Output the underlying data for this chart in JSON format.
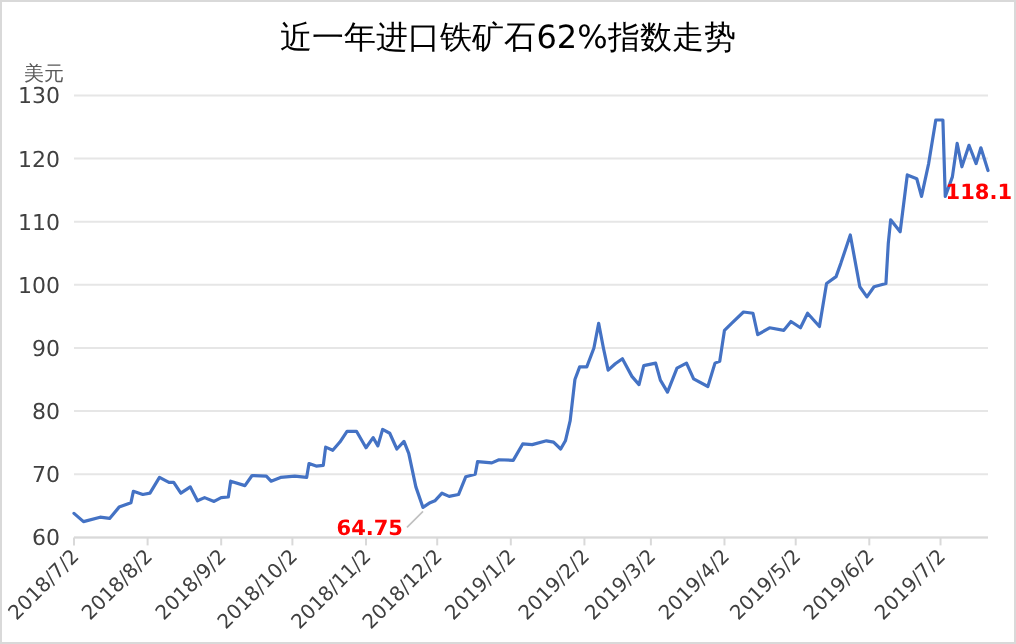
{
  "chart_data": {
    "type": "line",
    "title": "近一年进口铁矿石62%指数走势",
    "ylabel": "美元",
    "color": "#4472c4",
    "grid": "y",
    "xlim": [
      "2018-07-02",
      "2019-07-22"
    ],
    "ylim": [
      60,
      130
    ],
    "yticks": [
      60,
      70,
      80,
      90,
      100,
      110,
      120,
      130
    ],
    "xticks": [
      {
        "value": "2018-07-02",
        "label": "2018/7/2"
      },
      {
        "value": "2018-08-02",
        "label": "2018/8/2"
      },
      {
        "value": "2018-09-02",
        "label": "2018/9/2"
      },
      {
        "value": "2018-10-02",
        "label": "2018/10/2"
      },
      {
        "value": "2018-11-02",
        "label": "2018/11/2"
      },
      {
        "value": "2018-12-02",
        "label": "2018/12/2"
      },
      {
        "value": "2019-01-02",
        "label": "2019/1/2"
      },
      {
        "value": "2019-02-02",
        "label": "2019/2/2"
      },
      {
        "value": "2019-03-02",
        "label": "2019/3/2"
      },
      {
        "value": "2019-04-02",
        "label": "2019/4/2"
      },
      {
        "value": "2019-05-02",
        "label": "2019/5/2"
      },
      {
        "value": "2019-06-02",
        "label": "2019/6/2"
      },
      {
        "value": "2019-07-02",
        "label": "2019/7/2"
      }
    ],
    "x": [
      "2018-07-02",
      "2018-07-06",
      "2018-07-13",
      "2018-07-17",
      "2018-07-21",
      "2018-07-26",
      "2018-07-27",
      "2018-07-31",
      "2018-08-03",
      "2018-08-07",
      "2018-08-11",
      "2018-08-13",
      "2018-08-16",
      "2018-08-20",
      "2018-08-23",
      "2018-08-26",
      "2018-08-30",
      "2018-09-02",
      "2018-09-05",
      "2018-09-06",
      "2018-09-12",
      "2018-09-15",
      "2018-09-21",
      "2018-09-23",
      "2018-09-27",
      "2018-10-03",
      "2018-10-08",
      "2018-10-09",
      "2018-10-12",
      "2018-10-15",
      "2018-10-16",
      "2018-10-19",
      "2018-10-22",
      "2018-10-25",
      "2018-10-29",
      "2018-11-02",
      "2018-11-05",
      "2018-11-07",
      "2018-11-09",
      "2018-11-12",
      "2018-11-15",
      "2018-11-18",
      "2018-11-20",
      "2018-11-23",
      "2018-11-26",
      "2018-11-29",
      "2018-12-01",
      "2018-12-04",
      "2018-12-07",
      "2018-12-11",
      "2018-12-14",
      "2018-12-18",
      "2018-12-19",
      "2018-12-25",
      "2018-12-28",
      "2019-01-03",
      "2019-01-07",
      "2019-01-11",
      "2019-01-17",
      "2019-01-20",
      "2019-01-23",
      "2019-01-25",
      "2019-01-27",
      "2019-01-29",
      "2019-01-31",
      "2019-02-03",
      "2019-02-06",
      "2019-02-08",
      "2019-02-10",
      "2019-02-12",
      "2019-02-15",
      "2019-02-18",
      "2019-02-22",
      "2019-02-25",
      "2019-02-27",
      "2019-03-04",
      "2019-03-06",
      "2019-03-09",
      "2019-03-13",
      "2019-03-17",
      "2019-03-20",
      "2019-03-26",
      "2019-03-29",
      "2019-03-31",
      "2019-04-02",
      "2019-04-05",
      "2019-04-10",
      "2019-04-14",
      "2019-04-16",
      "2019-04-21",
      "2019-04-27",
      "2019-04-30",
      "2019-05-04",
      "2019-05-07",
      "2019-05-12",
      "2019-05-15",
      "2019-05-19",
      "2019-05-21",
      "2019-05-25",
      "2019-05-29",
      "2019-06-01",
      "2019-06-04",
      "2019-06-09",
      "2019-06-10",
      "2019-06-11",
      "2019-06-15",
      "2019-06-18",
      "2019-06-22",
      "2019-06-24",
      "2019-06-27",
      "2019-06-30",
      "2019-07-03",
      "2019-07-04",
      "2019-07-07",
      "2019-07-09",
      "2019-07-11",
      "2019-07-14",
      "2019-07-17",
      "2019-07-19",
      "2019-07-22"
    ],
    "values": [
      63.8,
      62.5,
      63.2,
      63.0,
      64.8,
      65.5,
      67.3,
      66.8,
      67.0,
      69.5,
      68.7,
      68.7,
      67.0,
      68.0,
      65.8,
      66.3,
      65.7,
      66.3,
      66.4,
      68.9,
      68.2,
      69.8,
      69.7,
      68.9,
      69.5,
      69.7,
      69.5,
      71.7,
      71.3,
      71.4,
      74.3,
      73.8,
      75.1,
      76.8,
      76.8,
      74.2,
      75.8,
      74.5,
      77.1,
      76.5,
      74.0,
      75.2,
      73.3,
      68.0,
      64.75,
      65.5,
      65.8,
      67.0,
      66.5,
      66.8,
      69.6,
      70.0,
      72.0,
      71.8,
      72.3,
      72.2,
      74.8,
      74.7,
      75.3,
      75.1,
      74.0,
      75.3,
      78.5,
      85.0,
      87.0,
      87.0,
      90.0,
      93.9,
      90.0,
      86.5,
      87.5,
      88.3,
      85.5,
      84.2,
      87.2,
      87.6,
      84.9,
      83.0,
      86.8,
      87.6,
      85.1,
      83.9,
      87.6,
      87.9,
      92.8,
      93.9,
      95.7,
      95.5,
      92.1,
      93.2,
      92.8,
      94.2,
      93.2,
      95.5,
      93.4,
      100.2,
      101.3,
      103.4,
      107.9,
      99.7,
      98.1,
      99.7,
      100.2,
      106.6,
      110.3,
      108.4,
      117.4,
      116.8,
      114.0,
      119.2,
      126.1,
      126.1,
      114.0,
      117.1,
      122.4,
      118.7,
      122.1,
      119.2,
      121.7,
      118.1
    ],
    "annotations": [
      {
        "text": "64.75",
        "x": "2018-11-26",
        "y": 64.75
      },
      {
        "text": "118.1",
        "x": "2019-07-22",
        "y": 118.1
      }
    ]
  }
}
